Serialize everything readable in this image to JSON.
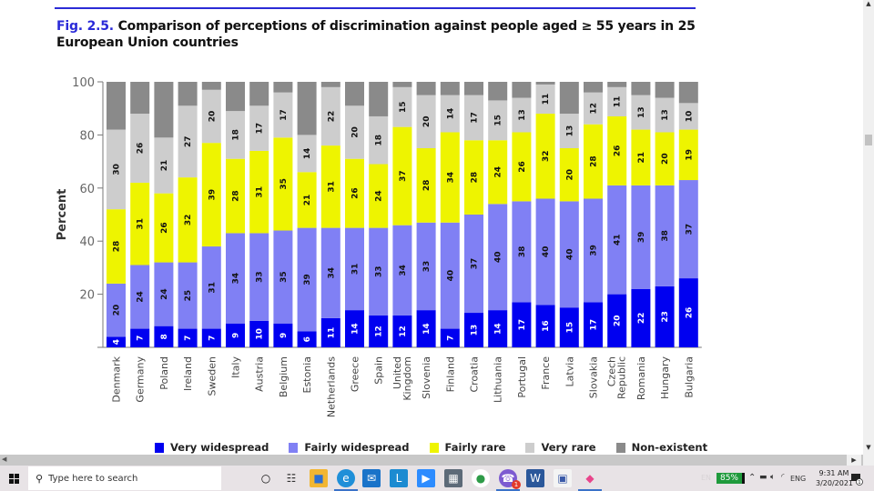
{
  "document": {
    "figure_label": "Fig. 2.5.",
    "figure_title": "Comparison of perceptions of discrimination against people aged ≥ 55 years in 25 European Union countries"
  },
  "chart_data": {
    "type": "bar",
    "stacked": true,
    "orientation": "vertical",
    "title": "Fig. 2.5. Comparison of perceptions of discrimination against people aged ≥ 55 years in 25 European Union countries",
    "xlabel": "",
    "ylabel": "Percent",
    "ylim": [
      0,
      100
    ],
    "yticks": [
      0,
      20,
      40,
      60,
      80,
      100
    ],
    "ytick_labels": [
      "",
      "20",
      "40",
      "60",
      "80",
      "100"
    ],
    "grid": false,
    "legend_position": "bottom",
    "categories": [
      "Denmark",
      "Germany",
      "Poland",
      "Ireland",
      "Sweden",
      "Italy",
      "Austria",
      "Belgium",
      "Estonia",
      "Netherlands",
      "Greece",
      "Spain",
      "United Kingdom",
      "Slovenia",
      "Finland",
      "Croatia",
      "Lithuania",
      "Portugal",
      "France",
      "Latvia",
      "Slovakia",
      "Czech Republic",
      "Romania",
      "Hungary",
      "Bulgaria"
    ],
    "series": [
      {
        "name": "Very widespread",
        "color": "#0000f0",
        "label_color": "#ffffff",
        "values": [
          4,
          7,
          8,
          7,
          7,
          9,
          10,
          9,
          6,
          11,
          14,
          12,
          12,
          14,
          7,
          13,
          14,
          17,
          16,
          15,
          17,
          20,
          22,
          23,
          26
        ]
      },
      {
        "name": "Fairly widespread",
        "color": "#8080f4",
        "label_color": "#111111",
        "values": [
          20,
          24,
          24,
          25,
          31,
          34,
          33,
          35,
          39,
          34,
          31,
          33,
          34,
          33,
          40,
          37,
          40,
          38,
          40,
          40,
          39,
          41,
          39,
          38,
          37
        ]
      },
      {
        "name": "Fairly rare",
        "color": "#eef400",
        "label_color": "#111111",
        "values": [
          28,
          31,
          26,
          32,
          39,
          28,
          31,
          35,
          21,
          31,
          26,
          24,
          37,
          28,
          34,
          28,
          24,
          26,
          32,
          20,
          28,
          26,
          21,
          20,
          19
        ]
      },
      {
        "name": "Very rare",
        "color": "#cdcdcd",
        "label_color": "#111111",
        "values": [
          30,
          26,
          21,
          27,
          20,
          18,
          17,
          17,
          14,
          22,
          20,
          18,
          15,
          20,
          14,
          17,
          15,
          13,
          11,
          13,
          12,
          11,
          13,
          13,
          10
        ]
      },
      {
        "name": "Non-existent",
        "color": "#8a8a8a",
        "label_color": "#111111",
        "show_labels": false,
        "values": [
          18,
          12,
          21,
          9,
          3,
          11,
          9,
          4,
          20,
          2,
          9,
          13,
          2,
          5,
          5,
          5,
          7,
          6,
          1,
          12,
          4,
          2,
          5,
          6,
          8
        ]
      }
    ]
  },
  "legend": {
    "items": [
      {
        "label": "Very widespread",
        "color": "#0000f0"
      },
      {
        "label": "Fairly widespread",
        "color": "#8080f4"
      },
      {
        "label": "Fairly rare",
        "color": "#eef400"
      },
      {
        "label": "Very rare",
        "color": "#cdcdcd"
      },
      {
        "label": "Non-existent",
        "color": "#8a8a8a"
      }
    ]
  },
  "taskbar": {
    "search_placeholder": "Type here to search",
    "apps": [
      {
        "name": "cortana",
        "glyph": "○"
      },
      {
        "name": "task-view",
        "glyph": "☷"
      },
      {
        "name": "file-explorer",
        "glyph": "■"
      },
      {
        "name": "edge",
        "glyph": "e"
      },
      {
        "name": "mail",
        "glyph": "✉"
      },
      {
        "name": "app-l",
        "glyph": "L"
      },
      {
        "name": "zoom",
        "glyph": "▶"
      },
      {
        "name": "calculator",
        "glyph": "▦"
      },
      {
        "name": "chrome",
        "glyph": "●"
      },
      {
        "name": "viber",
        "glyph": "☎",
        "badge": "1"
      },
      {
        "name": "word",
        "glyph": "W"
      },
      {
        "name": "app-window",
        "glyph": "▣"
      },
      {
        "name": "paint",
        "glyph": "◆"
      }
    ],
    "tray": {
      "input_hint": "EN",
      "battery": "85%",
      "language": "ENG",
      "time": "9:31 AM",
      "date": "3/20/2021",
      "notifications_count": "1"
    }
  }
}
